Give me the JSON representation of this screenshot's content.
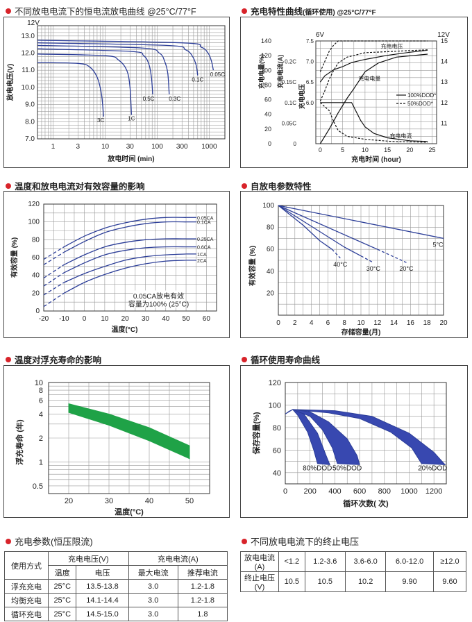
{
  "sections": {
    "s1": "不同放电电流下的恒电流放电曲线 @25°C/77°F",
    "s2": "充电特性曲线",
    "s2_sub": "(循环使用) @25°C/77°F",
    "s3": "温度和放电电流对有效容量的影响",
    "s4": "自放电参数特性",
    "s5": "温度对浮充寿命的影响",
    "s6": "循环使用寿命曲线",
    "s7": "充电参数(恒压限流)",
    "s8": "不同放电电流下的终止电压"
  },
  "colors": {
    "curve": "#2c3e98",
    "band": "#1fa247",
    "dot": "#d8232a"
  },
  "chart_data": [
    {
      "id": "discharge",
      "type": "line",
      "xscale": "log",
      "xlabel": "放电时间 (min)",
      "ylabel": "放电电压(V)",
      "y_unit_label": "12V",
      "xticks": [
        1,
        3,
        10,
        30,
        100,
        300,
        1000
      ],
      "yticks": [
        7.0,
        8.0,
        9.0,
        10.0,
        11.0,
        12.0,
        13.0
      ],
      "ylim": [
        7.0,
        13.6
      ],
      "series": [
        {
          "name": "3C",
          "points": [
            [
              0.5,
              11.45
            ],
            [
              3,
              11.4
            ],
            [
              5,
              11.2
            ],
            [
              7,
              10.6
            ],
            [
              8.5,
              9.6
            ],
            [
              9.3,
              8.3
            ]
          ]
        },
        {
          "name": "1C",
          "points": [
            [
              0.5,
              11.95
            ],
            [
              10,
              11.85
            ],
            [
              18,
              11.6
            ],
            [
              26,
              11.0
            ],
            [
              30,
              10.0
            ],
            [
              32,
              8.4
            ]
          ]
        },
        {
          "name": "0.5C",
          "points": [
            [
              0.5,
              12.25
            ],
            [
              30,
              12.1
            ],
            [
              55,
              11.85
            ],
            [
              70,
              11.3
            ],
            [
              78,
              10.5
            ],
            [
              82,
              9.6
            ]
          ]
        },
        {
          "name": "0.3C",
          "points": [
            [
              0.5,
              12.45
            ],
            [
              50,
              12.3
            ],
            [
              110,
              12.0
            ],
            [
              140,
              11.5
            ],
            [
              160,
              10.8
            ],
            [
              170,
              9.6
            ]
          ]
        },
        {
          "name": "0.1C",
          "points": [
            [
              0.5,
              12.6
            ],
            [
              150,
              12.45
            ],
            [
              350,
              12.2
            ],
            [
              480,
              11.8
            ],
            [
              560,
              11.3
            ],
            [
              600,
              10.7
            ]
          ]
        },
        {
          "name": "0.05C",
          "points": [
            [
              0.5,
              12.75
            ],
            [
              300,
              12.6
            ],
            [
              700,
              12.35
            ],
            [
              950,
              12.0
            ],
            [
              1100,
              11.55
            ],
            [
              1200,
              11.0
            ]
          ]
        }
      ]
    },
    {
      "id": "charge",
      "type": "line",
      "xlabel": "充电时间 (hour)",
      "ylabel_left1": "充电电量(%)",
      "ylabel_left2": "充电电流(A)",
      "ylabel_left3": "充电电压",
      "top_left": "6V",
      "top_right": "12V",
      "xticks": [
        0,
        5,
        10,
        15,
        20,
        25
      ],
      "y_charge_ticks": [
        0,
        20,
        40,
        60,
        80,
        100,
        120,
        140
      ],
      "y_current_ticks": [
        "0",
        "0.05C",
        "0.1C",
        "0.15C",
        "0.2C"
      ],
      "y_volt6_ticks": [
        6.0,
        6.5,
        7.0,
        7.5
      ],
      "y_volt12_ticks": [
        11,
        12,
        13,
        14,
        15
      ],
      "legend": [
        "100%DOD*",
        "50%DOD*"
      ],
      "annotations": [
        "充电电压",
        "充电电量",
        "充电电流"
      ],
      "series": [
        {
          "name": "充电电压",
          "dod": 100,
          "points": [
            [
              0,
              13.0
            ],
            [
              1,
              13.3
            ],
            [
              3,
              13.6
            ],
            [
              5,
              13.75
            ],
            [
              7,
              13.95
            ],
            [
              10,
              14.1
            ],
            [
              15,
              14.3
            ],
            [
              20,
              14.45
            ],
            [
              24,
              14.55
            ]
          ]
        },
        {
          "name": "充电电量",
          "dod": 100,
          "points": [
            [
              0,
              0
            ],
            [
              2,
              20
            ],
            [
              4,
              42
            ],
            [
              6,
              62
            ],
            [
              7.5,
              75
            ],
            [
              10,
              98
            ],
            [
              13,
              110
            ],
            [
              17,
              118
            ],
            [
              24,
              122
            ]
          ]
        },
        {
          "name": "充电电流",
          "dod": 100,
          "points": [
            [
              0,
              56
            ],
            [
              7,
              56
            ],
            [
              8,
              44
            ],
            [
              9,
              32
            ],
            [
              10,
              23
            ],
            [
              12,
              14
            ],
            [
              15,
              8
            ],
            [
              20,
              4
            ],
            [
              24,
              3
            ]
          ]
        },
        {
          "name": "充电电压",
          "dod": 50,
          "points": [
            [
              0,
              13.5
            ],
            [
              1,
              14.0
            ],
            [
              2,
              14.5
            ],
            [
              3,
              14.8
            ],
            [
              4,
              15.0
            ],
            [
              24,
              15.0
            ]
          ]
        },
        {
          "name": "充电电量",
          "dod": 50,
          "points": [
            [
              0,
              58
            ],
            [
              1,
              72
            ],
            [
              2,
              88
            ],
            [
              3,
              100
            ],
            [
              4,
              110
            ],
            [
              6,
              118
            ],
            [
              10,
              124
            ],
            [
              24,
              128
            ]
          ]
        },
        {
          "name": "充电电流",
          "dod": 50,
          "points": [
            [
              0,
              56
            ],
            [
              2,
              45
            ],
            [
              3,
              30
            ],
            [
              4,
              18
            ],
            [
              6,
              10
            ],
            [
              10,
              6
            ],
            [
              16,
              3
            ],
            [
              24,
              2
            ]
          ]
        }
      ]
    },
    {
      "id": "temp_capacity",
      "type": "line",
      "xlabel": "温度(°C)",
      "ylabel": "有效容量 (%)",
      "xticks": [
        -20,
        -10,
        0,
        10,
        20,
        30,
        40,
        50,
        60
      ],
      "yticks": [
        0,
        20,
        40,
        60,
        80,
        100,
        120
      ],
      "note": [
        "0.05CA放电有效",
        "容量为100% (25°C)"
      ],
      "series": [
        {
          "name": "0.05CA",
          "points": [
            [
              -20,
              58
            ],
            [
              -10,
              72
            ],
            [
              0,
              84
            ],
            [
              10,
              93
            ],
            [
              20,
              99
            ],
            [
              30,
              103
            ],
            [
              40,
              105
            ],
            [
              50,
              105
            ]
          ]
        },
        {
          "name": "0.1CA",
          "points": [
            [
              -20,
              52
            ],
            [
              -10,
              66
            ],
            [
              0,
              78
            ],
            [
              10,
              88
            ],
            [
              20,
              94
            ],
            [
              30,
              98
            ],
            [
              40,
              100
            ],
            [
              50,
              100
            ]
          ]
        },
        {
          "name": "0.25CA",
          "points": [
            [
              -20,
              37
            ],
            [
              -10,
              52
            ],
            [
              0,
              63
            ],
            [
              10,
              72
            ],
            [
              20,
              77
            ],
            [
              30,
              80
            ],
            [
              40,
              81
            ],
            [
              50,
              81
            ]
          ]
        },
        {
          "name": "0.6CA",
          "points": [
            [
              -20,
              28
            ],
            [
              -10,
              43
            ],
            [
              0,
              54
            ],
            [
              10,
              63
            ],
            [
              20,
              68
            ],
            [
              30,
              71
            ],
            [
              40,
              72
            ],
            [
              50,
              72
            ]
          ]
        },
        {
          "name": "1CA",
          "points": [
            [
              -20,
              18
            ],
            [
              -10,
              32
            ],
            [
              0,
              42
            ],
            [
              10,
              50
            ],
            [
              20,
              57
            ],
            [
              30,
              61
            ],
            [
              40,
              63
            ],
            [
              50,
              64
            ]
          ]
        },
        {
          "name": "2CA",
          "points": [
            [
              -20,
              5
            ],
            [
              -10,
              20
            ],
            [
              0,
              32
            ],
            [
              10,
              41
            ],
            [
              20,
              48
            ],
            [
              30,
              53
            ],
            [
              40,
              56
            ],
            [
              50,
              57
            ]
          ]
        }
      ]
    },
    {
      "id": "self_discharge",
      "type": "line",
      "xlabel": "存储容量(月)",
      "ylabel": "有效容量 (%)",
      "xticks": [
        0,
        2,
        4,
        6,
        8,
        10,
        12,
        14,
        16,
        18,
        20
      ],
      "yticks": [
        20,
        40,
        60,
        80,
        100
      ],
      "ylim": [
        0,
        100
      ],
      "series": [
        {
          "name": "5°C",
          "points": [
            [
              0,
              100
            ],
            [
              20,
              70
            ]
          ]
        },
        {
          "name": "20°C",
          "points": [
            [
              0,
              100
            ],
            [
              12,
              60
            ],
            [
              15.5,
              48
            ]
          ]
        },
        {
          "name": "30°C",
          "points": [
            [
              0,
              100
            ],
            [
              8,
              62
            ],
            [
              10,
              54
            ],
            [
              11.5,
              48
            ]
          ]
        },
        {
          "name": "40°C",
          "points": [
            [
              0,
              100
            ],
            [
              3,
              82
            ],
            [
              5,
              68
            ],
            [
              6.5,
              60
            ],
            [
              7.5,
              52
            ]
          ]
        }
      ]
    },
    {
      "id": "float_life",
      "type": "area",
      "xlabel": "温度(°C)",
      "ylabel": "浮充寿命 (年)",
      "yscale": "log",
      "xticks": [
        20,
        30,
        40,
        50
      ],
      "yticks": [
        0.5,
        1,
        2,
        4,
        6,
        8,
        10
      ],
      "band_upper": [
        [
          20,
          5.4
        ],
        [
          30,
          4.0
        ],
        [
          40,
          2.7
        ],
        [
          50,
          1.6
        ]
      ],
      "band_lower": [
        [
          20,
          4.2
        ],
        [
          30,
          2.9
        ],
        [
          40,
          1.85
        ],
        [
          50,
          1.1
        ]
      ]
    },
    {
      "id": "cycle_life",
      "type": "area",
      "xlabel": "循环次数( 次)",
      "ylabel": "保存容量(%)",
      "xticks": [
        0,
        200,
        400,
        600,
        800,
        1000,
        1200
      ],
      "yticks": [
        40,
        60,
        80,
        100,
        120
      ],
      "series": [
        {
          "name": "80%DOD",
          "upper": [
            [
              0,
              92
            ],
            [
              60,
              96
            ],
            [
              150,
              92
            ],
            [
              260,
              75
            ],
            [
              330,
              55
            ],
            [
              360,
              47
            ]
          ],
          "lower": [
            [
              60,
              96
            ],
            [
              100,
              91
            ],
            [
              180,
              76
            ],
            [
              230,
              60
            ],
            [
              260,
              48
            ]
          ]
        },
        {
          "name": "50%DOD",
          "upper": [
            [
              60,
              96
            ],
            [
              200,
              94
            ],
            [
              350,
              85
            ],
            [
              500,
              70
            ],
            [
              580,
              55
            ],
            [
              600,
              47
            ]
          ],
          "lower": [
            [
              60,
              96
            ],
            [
              200,
              90
            ],
            [
              300,
              78
            ],
            [
              380,
              62
            ],
            [
              420,
              48
            ]
          ]
        },
        {
          "name": "20%DOD",
          "upper": [
            [
              60,
              96
            ],
            [
              400,
              95
            ],
            [
              700,
              90
            ],
            [
              1000,
              75
            ],
            [
              1200,
              58
            ],
            [
              1290,
              47
            ]
          ],
          "lower": [
            [
              60,
              96
            ],
            [
              350,
              93
            ],
            [
              600,
              88
            ],
            [
              850,
              76
            ],
            [
              1020,
              62
            ],
            [
              1100,
              48
            ]
          ]
        }
      ]
    }
  ],
  "charge_table": {
    "h_use": "使用方式",
    "h_voltage": "充电电压(V)",
    "h_current": "充电电流(A)",
    "h_temp": "温度",
    "h_volt": "电压",
    "h_max": "最大电流",
    "h_rec": "推荐电流",
    "rows": [
      {
        "mode": "浮充充电",
        "temp": "25°C",
        "volt": "13.5-13.8",
        "max": "3.0",
        "rec": "1.2-1.8"
      },
      {
        "mode": "均衡充电",
        "temp": "25°C",
        "volt": "14.1-14.4",
        "max": "3.0",
        "rec": "1.2-1.8"
      },
      {
        "mode": "循环充电",
        "temp": "25°C",
        "volt": "14.5-15.0",
        "max": "3.0",
        "rec": "1.8"
      }
    ]
  },
  "cutoff_table": {
    "h_current": "放电电流(A)",
    "h_voltage": "终止电压(V)",
    "currents": [
      "<1.2",
      "1.2-3.6",
      "3.6-6.0",
      "6.0-12.0",
      "≥12.0"
    ],
    "voltages": [
      "10.5",
      "10.5",
      "10.2",
      "9.90",
      "9.60"
    ]
  }
}
